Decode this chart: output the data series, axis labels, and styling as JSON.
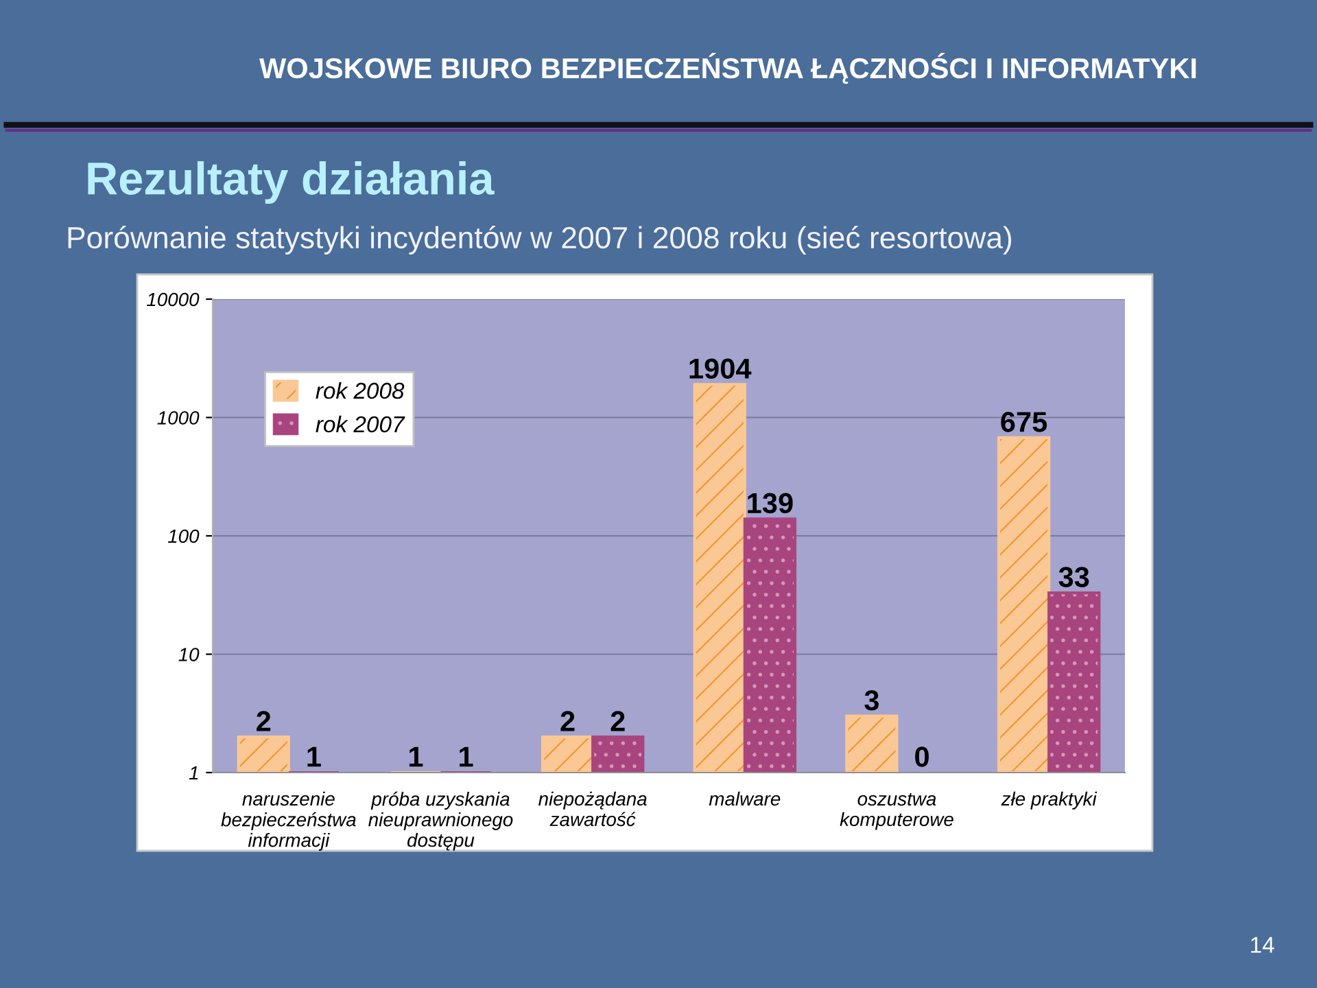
{
  "chart_data": {
    "type": "bar",
    "title": "Rezultaty działania",
    "subtitle": "Porównanie statystyki incydentów w 2007 i 2008 roku (sieć resortowa)",
    "annotations": [
      "WOJSKOWE BIURO BEZPIECZEŃSTWA ŁĄCZNOŚCI I INFORMATYKI",
      "14"
    ],
    "categories": [
      "naruszenie\nbezpieczeństwa\ninformacji",
      "próba uzyskania\nnieuprawnionego\ndostępu",
      "niepożądana\nzawartość",
      "malware",
      "oszustwa\nkomputerowe",
      "złe praktyki"
    ],
    "series": [
      {
        "name": "rok 2008",
        "color": "#f9c894",
        "values": [
          2,
          1,
          2,
          1904,
          3,
          675
        ],
        "value_labels": [
          "2",
          "1",
          "2",
          "1904",
          "3",
          "675"
        ]
      },
      {
        "name": "rok 2007",
        "color": "#a8457e",
        "values": [
          1,
          1,
          2,
          139,
          null,
          33
        ],
        "value_labels": [
          "1",
          "1",
          "2",
          "139",
          "0",
          "33"
        ]
      }
    ],
    "log": "y",
    "ylim": [
      1,
      10000
    ],
    "yticks": [
      1,
      10,
      100,
      1000,
      10000
    ],
    "grid": "y",
    "legend": "top left"
  }
}
